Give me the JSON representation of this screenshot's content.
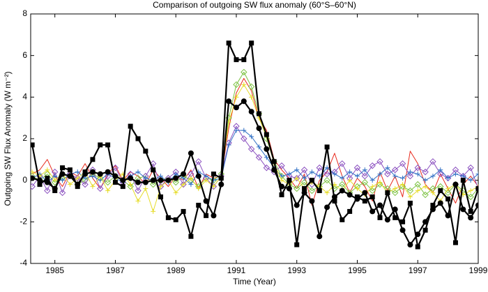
{
  "chart_data": {
    "type": "line",
    "title": "Comparison of outgoing SW flux anomaly (60°S–60°N)",
    "x_label": "Time (Year)",
    "y_label": "Outgoing SW Flux Anomaly (W m⁻²)",
    "xlim": [
      1984.2,
      1999
    ],
    "xticks": [
      1985,
      1987,
      1989,
      1991,
      1993,
      1995,
      1997,
      1999
    ],
    "ylim": [
      -4,
      8
    ],
    "yticks": [
      -4,
      -2,
      0,
      2,
      4,
      6,
      8
    ],
    "x": [
      1984.25,
      1984.5,
      1984.75,
      1985,
      1985.25,
      1985.5,
      1985.75,
      1986,
      1986.25,
      1986.5,
      1986.75,
      1987,
      1987.25,
      1987.5,
      1987.75,
      1988,
      1988.25,
      1988.5,
      1988.75,
      1989,
      1989.25,
      1989.5,
      1989.75,
      1990,
      1990.25,
      1990.5,
      1990.75,
      1991,
      1991.25,
      1991.5,
      1991.75,
      1992,
      1992.25,
      1992.5,
      1992.75,
      1993,
      1993.25,
      1993.5,
      1993.75,
      1994,
      1994.25,
      1994.5,
      1994.75,
      1995,
      1995.25,
      1995.5,
      1995.75,
      1996,
      1996.25,
      1996.5,
      1996.75,
      1997,
      1997.25,
      1997.5,
      1997.75,
      1998,
      1998.25,
      1998.5,
      1998.75,
      1999
    ],
    "series": [
      {
        "color": "#e8291c",
        "marker": "none",
        "width": 1,
        "values": [
          0.3,
          0.5,
          1.0,
          0.2,
          -0.3,
          0.4,
          0.2,
          0.8,
          0.1,
          -0.4,
          0.3,
          0.7,
          0.0,
          0.4,
          0.2,
          -0.2,
          0.5,
          0.1,
          -0.3,
          0.2,
          0.0,
          0.5,
          -0.4,
          0.3,
          0.1,
          0.2,
          2.5,
          4.2,
          4.9,
          4.3,
          3.0,
          2.4,
          1.0,
          0.5,
          0.1,
          -0.4,
          0.3,
          -1.2,
          0.0,
          0.4,
          1.3,
          0.2,
          -0.6,
          0.1,
          -0.3,
          -1.0,
          0.4,
          -0.5,
          0.2,
          -0.8,
          1.4,
          0.8,
          -0.2,
          -0.6,
          0.3,
          -0.4,
          -1.1,
          -0.2,
          0.2,
          -0.3
        ]
      },
      {
        "color": "#7cc242",
        "marker": "diamond",
        "width": 1,
        "values": [
          0.2,
          0.0,
          0.3,
          -0.1,
          0.1,
          0.2,
          -0.2,
          0.0,
          0.3,
          0.1,
          -0.1,
          0.2,
          0.0,
          -0.3,
          0.1,
          0.2,
          -0.2,
          0.0,
          0.1,
          -0.1,
          0.2,
          0.0,
          -0.3,
          0.1,
          0.0,
          0.3,
          3.0,
          4.6,
          5.2,
          4.5,
          3.2,
          2.0,
          0.9,
          0.2,
          -0.2,
          -0.4,
          -0.1,
          -0.5,
          -0.3,
          0.0,
          -0.4,
          -0.2,
          -0.6,
          -0.3,
          -0.1,
          -0.5,
          -0.2,
          -0.4,
          -0.6,
          -0.3,
          -0.5,
          -0.2,
          -0.7,
          -0.4,
          -0.3,
          -0.6,
          -0.2,
          -0.5,
          -0.8,
          -0.4
        ]
      },
      {
        "color": "#8a4fbf",
        "marker": "diamond",
        "width": 1,
        "values": [
          -0.3,
          0.2,
          -0.5,
          0.4,
          -0.6,
          0.3,
          0.1,
          -0.2,
          0.5,
          -0.4,
          0.2,
          0.6,
          -0.1,
          0.3,
          -0.5,
          0.2,
          0.8,
          -0.3,
          0.1,
          0.4,
          -0.2,
          0.3,
          0.9,
          0.1,
          -0.3,
          0.2,
          1.8,
          2.6,
          2.0,
          1.5,
          1.1,
          0.6,
          0.4,
          0.7,
          0.2,
          0.1,
          0.5,
          -0.2,
          0.6,
          0.3,
          0.4,
          0.8,
          0.1,
          0.6,
          0.2,
          0.7,
          0.9,
          0.3,
          0.5,
          0.8,
          0.2,
          0.6,
          0.4,
          0.9,
          0.3,
          0.1,
          0.5,
          0.2,
          0.6,
          -0.4
        ]
      },
      {
        "color": "#2f6fc4",
        "marker": "plus",
        "width": 1,
        "values": [
          0.1,
          0.3,
          -0.1,
          0.2,
          0.0,
          0.3,
          0.4,
          0.1,
          0.2,
          0.0,
          0.3,
          0.1,
          -0.1,
          0.2,
          0.4,
          0.1,
          0.0,
          0.2,
          -0.1,
          0.3,
          0.1,
          -0.2,
          0.4,
          0.2,
          0.0,
          0.1,
          1.7,
          2.4,
          2.4,
          2.1,
          1.6,
          1.1,
          0.6,
          0.2,
          0.3,
          0.5,
          0.1,
          0.4,
          0.2,
          0.6,
          0.3,
          0.1,
          0.4,
          0.2,
          0.5,
          0.0,
          0.3,
          0.6,
          0.2,
          0.1,
          0.4,
          0.3,
          0.0,
          0.2,
          0.5,
          0.1,
          0.3,
          0.2,
          0.0,
          0.3
        ]
      },
      {
        "color": "#e6dc2a",
        "marker": "plus",
        "width": 1,
        "values": [
          0.4,
          0.2,
          0.5,
          0.0,
          0.3,
          -0.2,
          0.1,
          0.4,
          -0.3,
          0.2,
          -0.5,
          0.0,
          0.3,
          -0.2,
          -1.0,
          -0.4,
          -1.5,
          -0.3,
          0.0,
          -0.6,
          -0.2,
          0.1,
          -0.4,
          0.0,
          -0.3,
          0.2,
          2.8,
          4.0,
          4.6,
          4.0,
          3.0,
          2.1,
          0.8,
          0.0,
          -0.2,
          0.1,
          -0.4,
          -0.1,
          -0.3,
          -0.6,
          -0.2,
          -0.5,
          0.0,
          -0.4,
          -0.7,
          -0.3,
          -0.1,
          -0.6,
          -0.4,
          -0.2,
          -0.8,
          -0.5,
          -0.3,
          -0.6,
          -1.0,
          -0.4,
          -0.2,
          -0.7,
          -0.5,
          -0.3
        ]
      },
      {
        "color": "#000000",
        "marker": "square",
        "width": 2.2,
        "values": [
          1.7,
          -0.2,
          0.1,
          -0.5,
          0.6,
          0.5,
          -0.3,
          0.4,
          1.0,
          1.7,
          1.7,
          -0.1,
          -0.3,
          2.6,
          2.0,
          1.4,
          0.5,
          -0.8,
          -1.8,
          -1.9,
          -1.5,
          -2.7,
          -1.2,
          -1.7,
          0.3,
          0.1,
          6.6,
          5.8,
          5.8,
          6.6,
          3.2,
          2.2,
          0.9,
          -0.7,
          0.0,
          -3.1,
          -0.4,
          0.0,
          -0.5,
          1.6,
          -1.0,
          -1.9,
          -1.5,
          -0.8,
          -1.0,
          -0.8,
          -1.8,
          -0.6,
          -1.8,
          -2.0,
          -1.1,
          -3.2,
          -2.4,
          -1.2,
          -0.5,
          -0.9,
          -3.0,
          0.0,
          -1.5,
          -0.4
        ]
      },
      {
        "color": "#000000",
        "marker": "circle",
        "width": 2.2,
        "values": [
          0.1,
          0.0,
          -0.1,
          -0.4,
          0.3,
          0.2,
          -0.2,
          0.3,
          0.4,
          0.3,
          0.4,
          0.2,
          0.0,
          0.1,
          -0.1,
          -0.1,
          0.0,
          0.0,
          0.0,
          0.1,
          0.3,
          1.3,
          0.2,
          -1.0,
          -1.7,
          -0.2,
          3.8,
          3.5,
          3.8,
          3.3,
          2.5,
          1.5,
          0.5,
          -0.3,
          -0.4,
          -1.2,
          -0.6,
          -1.0,
          -2.7,
          -1.3,
          -0.8,
          -0.5,
          -0.7,
          -0.9,
          -0.6,
          -1.5,
          -1.2,
          -1.9,
          -1.4,
          -2.4,
          -3.1,
          -2.6,
          -2.0,
          -1.4,
          -1.1,
          -1.7,
          -0.2,
          -1.4,
          -1.8,
          -1.2
        ]
      }
    ]
  }
}
